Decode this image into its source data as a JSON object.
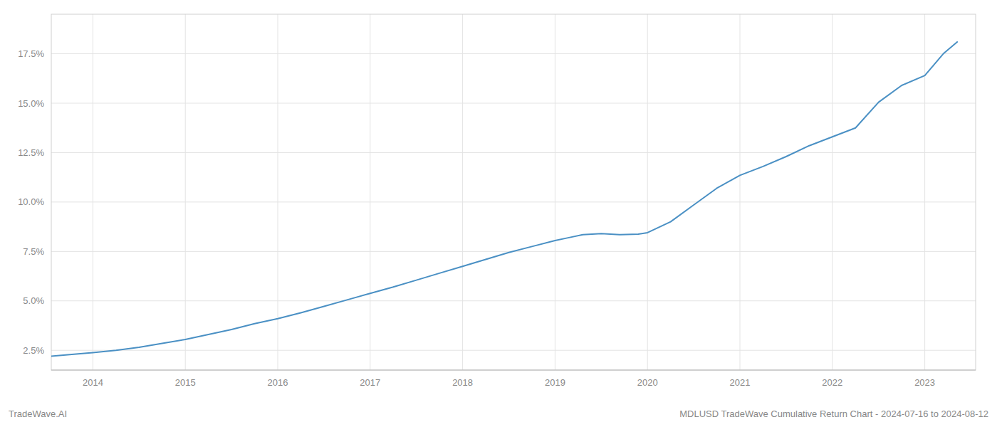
{
  "chart_data": {
    "type": "line",
    "title": "MDLUSD TradeWave Cumulative Return Chart - 2024-07-16 to 2024-08-12",
    "annotations": [
      "TradeWave.AI"
    ],
    "x": [
      2013.55,
      2013.75,
      2014.0,
      2014.25,
      2014.5,
      2014.75,
      2015.0,
      2015.25,
      2015.5,
      2015.75,
      2016.0,
      2016.25,
      2016.5,
      2016.75,
      2017.0,
      2017.25,
      2017.5,
      2017.75,
      2018.0,
      2018.25,
      2018.5,
      2018.75,
      2019.0,
      2019.15,
      2019.3,
      2019.5,
      2019.7,
      2019.9,
      2020.0,
      2020.25,
      2020.5,
      2020.75,
      2021.0,
      2021.25,
      2021.5,
      2021.75,
      2022.0,
      2022.25,
      2022.5,
      2022.75,
      2023.0,
      2023.2,
      2023.35
    ],
    "values": [
      2.2,
      2.28,
      2.38,
      2.5,
      2.65,
      2.85,
      3.05,
      3.3,
      3.55,
      3.85,
      4.1,
      4.4,
      4.72,
      5.05,
      5.38,
      5.7,
      6.05,
      6.4,
      6.75,
      7.1,
      7.45,
      7.75,
      8.05,
      8.2,
      8.35,
      8.4,
      8.35,
      8.38,
      8.45,
      9.0,
      9.85,
      10.7,
      11.35,
      11.8,
      12.3,
      12.85,
      13.3,
      13.75,
      15.05,
      15.9,
      16.4,
      17.5,
      18.1
    ],
    "color": "#4a90c4",
    "xlim": [
      2013.55,
      2023.55
    ],
    "xticks": [
      2014,
      2015,
      2016,
      2017,
      2018,
      2019,
      2020,
      2021,
      2022,
      2023
    ],
    "ylim": [
      1.5,
      19.5
    ],
    "yticks": [
      {
        "value": 2.5,
        "label": "2.5%"
      },
      {
        "value": 5.0,
        "label": "5.0%"
      },
      {
        "value": 7.5,
        "label": "7.5%"
      },
      {
        "value": 10.0,
        "label": "10.0%"
      },
      {
        "value": 12.5,
        "label": "12.5%"
      },
      {
        "value": 15.0,
        "label": "15.0%"
      },
      {
        "value": 17.5,
        "label": "17.5%"
      }
    ],
    "grid": true
  }
}
